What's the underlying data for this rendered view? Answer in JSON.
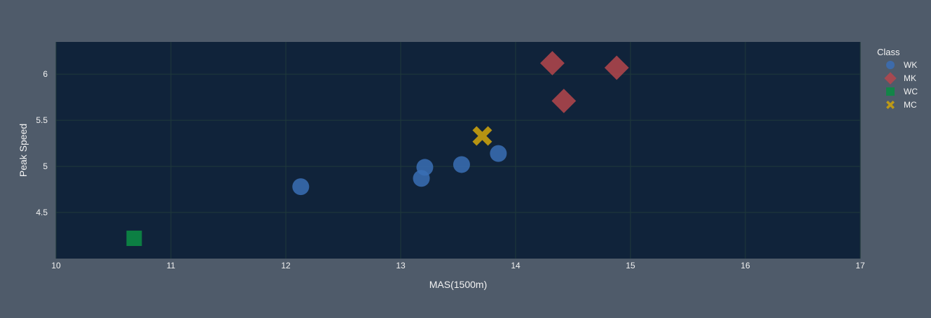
{
  "chart_data": {
    "type": "scatter",
    "title": "",
    "xlabel": "MAS(1500m)",
    "ylabel": "Peak Speed",
    "xlim": [
      10,
      17
    ],
    "ylim": [
      4.0,
      6.35
    ],
    "x_ticks": [
      "10",
      "11",
      "12",
      "13",
      "14",
      "15",
      "16",
      "17"
    ],
    "y_ticks": [
      "4.5",
      "5",
      "5.5",
      "6"
    ],
    "grid": true,
    "legend": {
      "title": "Class",
      "placement": "top-right, outside plot area"
    },
    "series": [
      {
        "name": "WK",
        "marker": "circle",
        "color": "#3a6eb5",
        "points": [
          [
            12.13,
            4.78
          ],
          [
            13.18,
            4.87
          ],
          [
            13.21,
            4.99
          ],
          [
            13.53,
            5.02
          ],
          [
            13.85,
            5.14
          ]
        ]
      },
      {
        "name": "MK",
        "marker": "diamond",
        "color": "#b5474c",
        "points": [
          [
            14.32,
            6.12
          ],
          [
            14.88,
            6.07
          ],
          [
            14.42,
            5.71
          ]
        ]
      },
      {
        "name": "WC",
        "marker": "square",
        "color": "#0c8a45",
        "points": [
          [
            10.68,
            4.22
          ]
        ]
      },
      {
        "name": "MC",
        "marker": "x",
        "color": "#c9a00e",
        "points": [
          [
            13.71,
            5.33
          ]
        ]
      }
    ]
  },
  "colors": {
    "page_background": "#4f5b6a",
    "plot_background": "#10233a",
    "grid": "#1f3a3a",
    "text": "#f2f2f2"
  }
}
